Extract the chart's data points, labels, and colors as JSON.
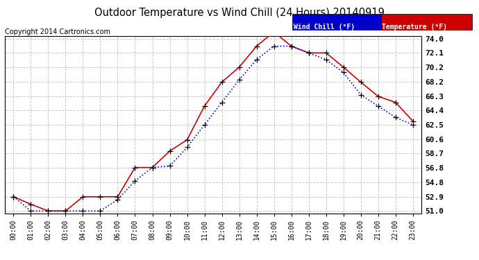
{
  "title": "Outdoor Temperature vs Wind Chill (24 Hours) 20140919",
  "copyright": "Copyright 2014 Cartronics.com",
  "background_color": "#ffffff",
  "plot_bg_color": "#ffffff",
  "grid_color": "#c8c8c8",
  "hours": [
    "00:00",
    "01:00",
    "02:00",
    "03:00",
    "04:00",
    "05:00",
    "06:00",
    "07:00",
    "08:00",
    "09:00",
    "10:00",
    "11:00",
    "12:00",
    "13:00",
    "14:00",
    "15:00",
    "16:00",
    "17:00",
    "18:00",
    "19:00",
    "20:00",
    "21:00",
    "22:00",
    "23:00"
  ],
  "temperature": [
    52.9,
    51.9,
    51.0,
    51.0,
    52.9,
    52.9,
    52.9,
    56.8,
    56.8,
    59.0,
    60.5,
    65.0,
    68.2,
    70.2,
    73.0,
    74.9,
    73.0,
    72.1,
    72.1,
    70.2,
    68.2,
    66.3,
    65.5,
    63.0
  ],
  "wind_chill": [
    52.9,
    51.0,
    51.0,
    51.0,
    51.0,
    51.0,
    52.5,
    55.0,
    56.8,
    57.0,
    59.5,
    62.5,
    65.5,
    68.5,
    71.2,
    73.0,
    73.0,
    72.1,
    71.2,
    69.5,
    66.5,
    65.0,
    63.5,
    62.5
  ],
  "temp_color": "#cc0000",
  "wind_color": "#0000cc",
  "marker": "+",
  "ylim_min": 51.0,
  "ylim_max": 74.0,
  "yticks": [
    51.0,
    52.9,
    54.8,
    56.8,
    58.7,
    60.6,
    62.5,
    64.4,
    66.3,
    68.2,
    70.2,
    72.1,
    74.0
  ],
  "legend_wind_bg": "#0000cc",
  "legend_temp_bg": "#cc0000",
  "legend_text_color": "#ffffff"
}
